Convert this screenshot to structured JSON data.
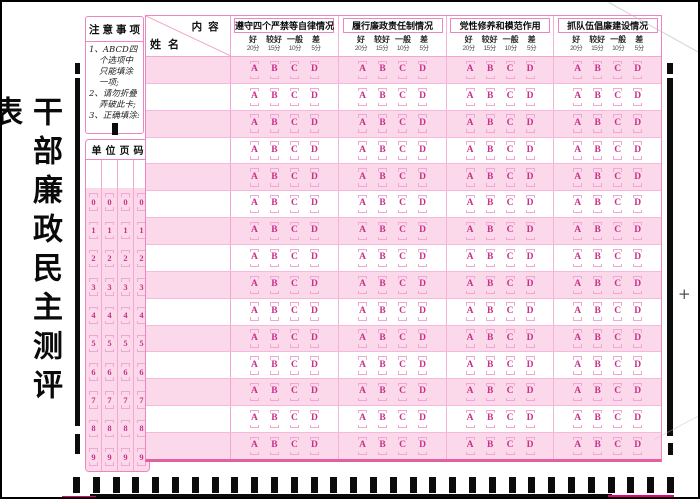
{
  "form": {
    "title": "干部廉政民主测评表",
    "plus_mark": "+"
  },
  "notice": {
    "title": "注意事项",
    "items": [
      "1、ABCD四个选项中只能填涂一项;",
      "2、请勿折叠弄破此卡;",
      "3、正确填涂:"
    ]
  },
  "unit_page": {
    "title": "单位页码",
    "column_count": 4,
    "digits": [
      "0",
      "1",
      "2",
      "3",
      "4",
      "5",
      "6",
      "7",
      "8",
      "9"
    ]
  },
  "table": {
    "corner_top_right": "内容",
    "corner_bottom_left": "姓名",
    "row_count": 15,
    "options": [
      "A",
      "B",
      "C",
      "D"
    ],
    "columns": [
      {
        "title": "遵守四个严禁等自律情况",
        "ratings": [
          "好",
          "较好",
          "一般",
          "差"
        ],
        "scores": [
          "20分",
          "15分",
          "10分",
          "5分"
        ]
      },
      {
        "title": "履行廉政责任制情况",
        "ratings": [
          "好",
          "较好",
          "一般",
          "差"
        ],
        "scores": [
          "20分",
          "15分",
          "10分",
          "5分"
        ]
      },
      {
        "title": "党性修养和模范作用",
        "ratings": [
          "好",
          "较好",
          "一般",
          "差"
        ],
        "scores": [
          "20分",
          "15分",
          "10分",
          "5分"
        ]
      },
      {
        "title": "抓队伍倡廉建设情况",
        "ratings": [
          "好",
          "较好",
          "一般",
          "差"
        ],
        "scores": [
          "20分",
          "15分",
          "10分",
          "5分"
        ]
      }
    ]
  },
  "colors": {
    "row_pink": "#fbd9ea",
    "border_pink": "#ec85c0",
    "bubble_letter": "#c9308a",
    "bubble_bracket": "#f2a6d2",
    "magenta_line": "#e6007e",
    "timing_black": "#0b0b0b"
  }
}
